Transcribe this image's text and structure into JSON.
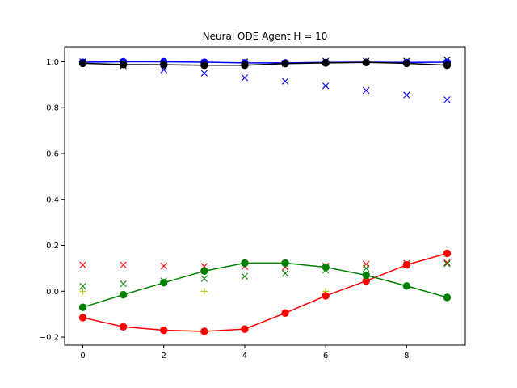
{
  "chart_data": {
    "type": "line",
    "title": "Neural ODE Agent H = 10",
    "xlabel": "",
    "ylabel": "",
    "xlim": [
      -0.45,
      9.45
    ],
    "ylim": [
      -0.235,
      1.065
    ],
    "xticks": [
      0,
      2,
      4,
      6,
      8
    ],
    "yticks": [
      -0.2,
      0.0,
      0.2,
      0.4,
      0.6,
      0.8,
      1.0
    ],
    "ytick_labels": [
      "−0.2",
      "0.0",
      "0.2",
      "0.4",
      "0.6",
      "0.8",
      "1.0"
    ],
    "grid": false,
    "legend": "none",
    "x": [
      0,
      1,
      2,
      3,
      4,
      5,
      6,
      7,
      8,
      9
    ],
    "series": [
      {
        "kind": "markers",
        "marker": "x",
        "color": "#0000ff",
        "values": [
          1.0,
          0.99,
          0.965,
          0.95,
          0.93,
          0.915,
          0.895,
          0.875,
          0.855,
          0.835
        ]
      },
      {
        "kind": "markers",
        "marker": "x",
        "color": "#ff0000",
        "values": [
          0.115,
          0.115,
          0.11,
          0.108,
          0.108,
          0.105,
          0.11,
          0.118,
          0.122,
          0.125
        ]
      },
      {
        "kind": "markers",
        "marker": "x",
        "color": "#008000",
        "values": [
          0.022,
          0.032,
          0.045,
          0.055,
          0.065,
          0.078,
          0.092,
          0.1,
          0.115,
          0.12
        ]
      },
      {
        "kind": "markers",
        "marker": "x",
        "color": "#000000",
        "values": [
          1.0,
          0.983,
          0.993,
          0.995,
          1.0,
          0.993,
          1.003,
          1.003,
          1.003,
          1.008
        ]
      },
      {
        "kind": "markers",
        "marker": "+",
        "color": "#bfbf00",
        "values": [
          0.0,
          null,
          null,
          0.0,
          null,
          null,
          0.0,
          null,
          null,
          null
        ]
      },
      {
        "kind": "line",
        "marker": "o",
        "color": "#0000ff",
        "values": [
          0.998,
          1.0,
          1.0,
          0.998,
          0.995,
          0.995,
          0.997,
          0.998,
          0.997,
          0.998
        ]
      },
      {
        "kind": "line",
        "marker": "o",
        "color": "#ff0000",
        "values": [
          -0.115,
          -0.155,
          -0.17,
          -0.175,
          -0.165,
          -0.095,
          -0.02,
          0.045,
          0.115,
          0.165
        ]
      },
      {
        "kind": "line",
        "marker": "o",
        "color": "#008000",
        "values": [
          -0.07,
          -0.015,
          0.037,
          0.088,
          0.123,
          0.123,
          0.105,
          0.07,
          0.023,
          -0.027
        ]
      },
      {
        "kind": "line",
        "marker": "o",
        "color": "#000000",
        "values": [
          0.993,
          0.988,
          0.987,
          0.985,
          0.985,
          0.992,
          0.995,
          0.997,
          0.993,
          0.985
        ]
      }
    ]
  }
}
